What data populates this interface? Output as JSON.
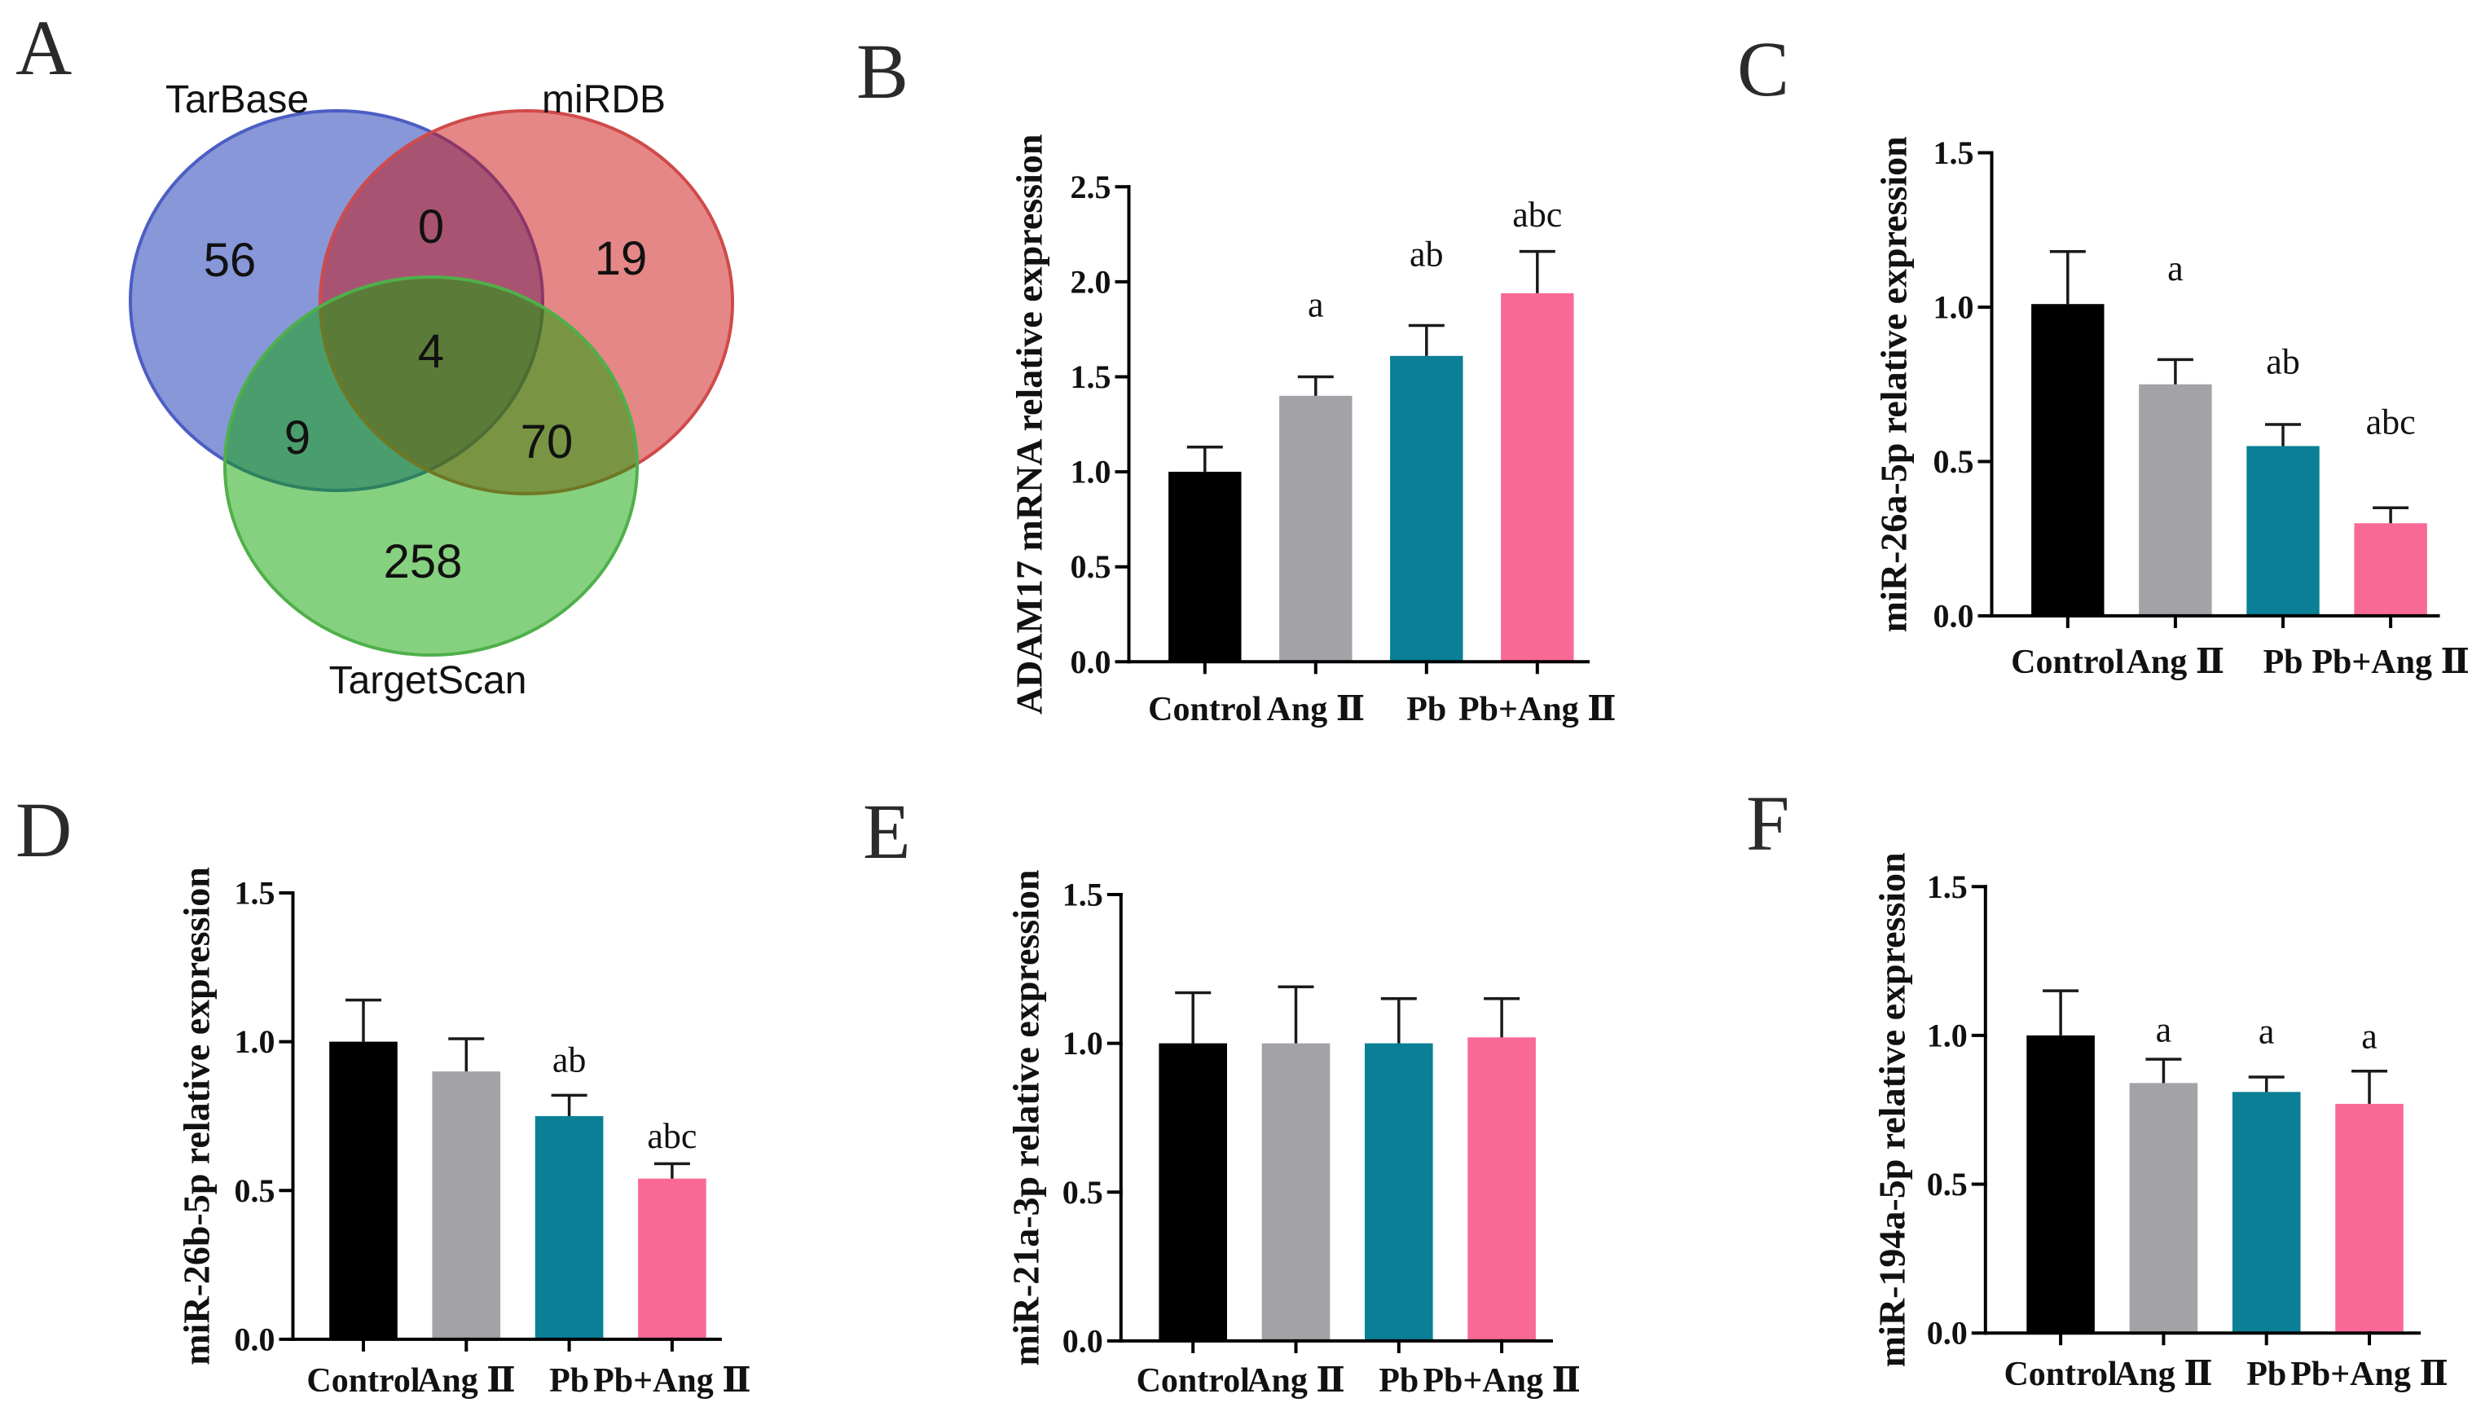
{
  "venn_diagram": {
    "panel_label": "A",
    "sets": [
      {
        "name": "TarBase",
        "fill": "#0f2fb1",
        "stroke": "#4c5ec4"
      },
      {
        "name": "miRDB",
        "fill": "#cb0f0d",
        "stroke": "#d04a4a"
      },
      {
        "name": "TargetScan",
        "fill": "#0da300",
        "stroke": "#4fb04a"
      }
    ],
    "regions": {
      "tarbase_only": 56,
      "tarbase_mirdb": 0,
      "mirdb_only": 19,
      "all_three": 4,
      "tarbase_targetscan": 9,
      "mirdb_targetscan": 70,
      "targetscan_only": 258
    }
  },
  "chart_data": [
    {
      "panel_label": "B",
      "type": "bar",
      "categories": [
        "Control",
        "Ang Ⅱ",
        "Pb",
        "Pb+Ang Ⅱ"
      ],
      "values": [
        1.0,
        1.4,
        1.61,
        1.94
      ],
      "errors": [
        0.13,
        0.1,
        0.16,
        0.22
      ],
      "annotations": [
        null,
        "a",
        "ab",
        "abc"
      ],
      "colors": [
        "#000000",
        "#a2a2a7",
        "#0a7f96",
        "#f86a95"
      ],
      "ylabel": "ADAM17 mRNA relative expression",
      "ylim": [
        0,
        2.5
      ],
      "yticks": [
        0,
        0.5,
        1.0,
        1.5,
        2.0,
        2.5
      ],
      "ytick_labels": [
        "0.0",
        "0.5",
        "1.0",
        "1.5",
        "2.0",
        "2.5"
      ]
    },
    {
      "panel_label": "C",
      "type": "bar",
      "categories": [
        "Control",
        "Ang Ⅱ",
        "Pb",
        "Pb+Ang Ⅱ"
      ],
      "values": [
        1.01,
        0.75,
        0.55,
        0.3
      ],
      "errors": [
        0.17,
        0.08,
        0.07,
        0.05
      ],
      "annotations": [
        null,
        "a",
        "ab",
        "abc"
      ],
      "colors": [
        "#000000",
        "#a2a2a7",
        "#0a7f96",
        "#f86a95"
      ],
      "ylabel": "miR-26a-5p relative expression",
      "ylim": [
        0,
        1.5
      ],
      "yticks": [
        0,
        0.5,
        1.0,
        1.5
      ],
      "ytick_labels": [
        "0.0",
        "0.5",
        "1.0",
        "1.5"
      ]
    },
    {
      "panel_label": "D",
      "type": "bar",
      "categories": [
        "Control",
        "Ang Ⅱ",
        "Pb",
        "Pb+Ang Ⅱ"
      ],
      "values": [
        1.0,
        0.9,
        0.75,
        0.54
      ],
      "errors": [
        0.14,
        0.11,
        0.07,
        0.05
      ],
      "annotations": [
        null,
        null,
        "ab",
        "abc"
      ],
      "colors": [
        "#000000",
        "#a2a2a7",
        "#0a7f96",
        "#f86a95"
      ],
      "ylabel": "miR-26b-5p relative expression",
      "ylim": [
        0,
        1.5
      ],
      "yticks": [
        0,
        0.5,
        1.0,
        1.5
      ],
      "ytick_labels": [
        "0.0",
        "0.5",
        "1.0",
        "1.5"
      ]
    },
    {
      "panel_label": "E",
      "type": "bar",
      "categories": [
        "Control",
        "Ang Ⅱ",
        "Pb",
        "Pb+Ang Ⅱ"
      ],
      "values": [
        1.0,
        1.0,
        1.0,
        1.02
      ],
      "errors": [
        0.17,
        0.19,
        0.15,
        0.13
      ],
      "annotations": [
        null,
        null,
        null,
        null
      ],
      "colors": [
        "#000000",
        "#a2a2a7",
        "#0a7f96",
        "#f86a95"
      ],
      "ylabel": "miR-21a-3p relative expression",
      "ylim": [
        0,
        1.5
      ],
      "yticks": [
        0,
        0.5,
        1.0,
        1.5
      ],
      "ytick_labels": [
        "0.0",
        "0.5",
        "1.0",
        "1.5"
      ]
    },
    {
      "panel_label": "F",
      "type": "bar",
      "categories": [
        "Control",
        "Ang Ⅱ",
        "Pb",
        "Pb+Ang Ⅱ"
      ],
      "values": [
        1.0,
        0.84,
        0.81,
        0.77
      ],
      "errors": [
        0.15,
        0.08,
        0.05,
        0.11
      ],
      "annotations": [
        null,
        "a",
        "a",
        "a"
      ],
      "colors": [
        "#000000",
        "#a2a2a7",
        "#0a7f96",
        "#f86a95"
      ],
      "ylabel": "miR-194a-5p relative expression",
      "ylim": [
        0,
        1.5
      ],
      "yticks": [
        0,
        0.5,
        1.0,
        1.5
      ],
      "ytick_labels": [
        "0.0",
        "0.5",
        "1.0",
        "1.5"
      ]
    }
  ]
}
